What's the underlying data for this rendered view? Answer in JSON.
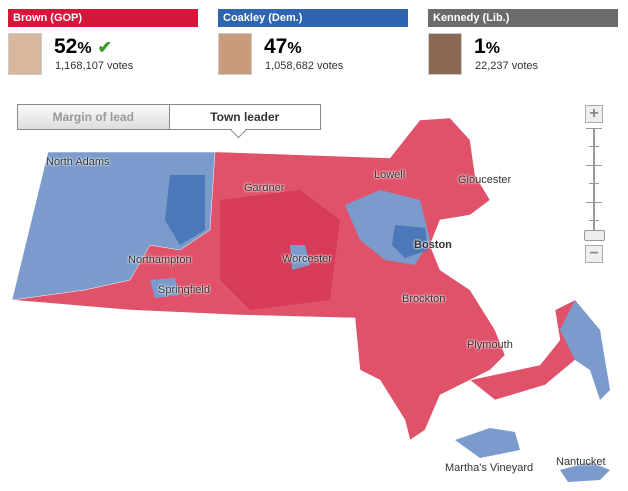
{
  "candidates": [
    {
      "name": "Brown (GOP)",
      "percent": "52",
      "votes": "1,168,107 votes",
      "color": "#d6163a",
      "winner": true
    },
    {
      "name": "Coakley (Dem.)",
      "percent": "47",
      "votes": "1,058,682 votes",
      "color": "#2e64b0",
      "winner": false
    },
    {
      "name": "Kennedy (Lib.)",
      "percent": "1",
      "votes": "22,237 votes",
      "color": "#6b6b6b",
      "winner": false
    }
  ],
  "pct_sign": "%",
  "toggle": {
    "margin": "Margin of lead",
    "leader": "Town leader",
    "selected": "Town leader"
  },
  "zoom": {
    "plus": "+",
    "minus": "−",
    "level": 0
  },
  "map": {
    "colors": {
      "gop": "#e0526a",
      "gop_strong": "#d63c58",
      "dem": "#7a9bcc",
      "dem_strong": "#4a78b8"
    },
    "labels": [
      "North Adams",
      "Gardner",
      "Lowell",
      "Gloucester",
      "Boston",
      "Northampton",
      "Worcester",
      "Springfield",
      "Brockton",
      "Plymouth",
      "Martha's Vineyard",
      "Nantucket"
    ]
  }
}
